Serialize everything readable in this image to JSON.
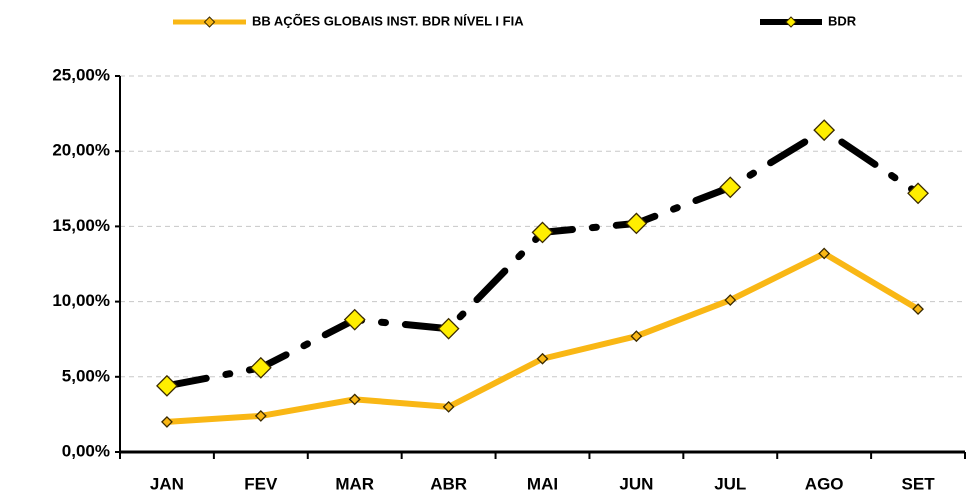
{
  "chart_data": {
    "type": "line",
    "categories": [
      "JAN",
      "FEV",
      "MAR",
      "ABR",
      "MAI",
      "JUN",
      "JUL",
      "AGO",
      "SET"
    ],
    "series": [
      {
        "name": "BB AÇÕES GLOBAIS INST. BDR NÍVEL I FIA",
        "color": "#f9b715",
        "marker_color": "#f9b715",
        "values": [
          2.0,
          2.4,
          3.5,
          3.0,
          6.2,
          7.7,
          10.1,
          13.2,
          9.5
        ]
      },
      {
        "name": "BDR",
        "color": "#000000",
        "marker_color": "#ffee00",
        "values": [
          4.4,
          5.6,
          8.8,
          8.2,
          14.6,
          15.2,
          17.6,
          21.4,
          17.2
        ]
      }
    ],
    "ylim": [
      0,
      25
    ],
    "yticks": [
      {
        "value": 0,
        "label": "0,00%"
      },
      {
        "value": 5,
        "label": "5,00%"
      },
      {
        "value": 10,
        "label": "10,00%"
      },
      {
        "value": 15,
        "label": "15,00%"
      },
      {
        "value": 20,
        "label": "20,00%"
      },
      {
        "value": 25,
        "label": "25,00%"
      }
    ],
    "grid": true,
    "legend": "top"
  }
}
